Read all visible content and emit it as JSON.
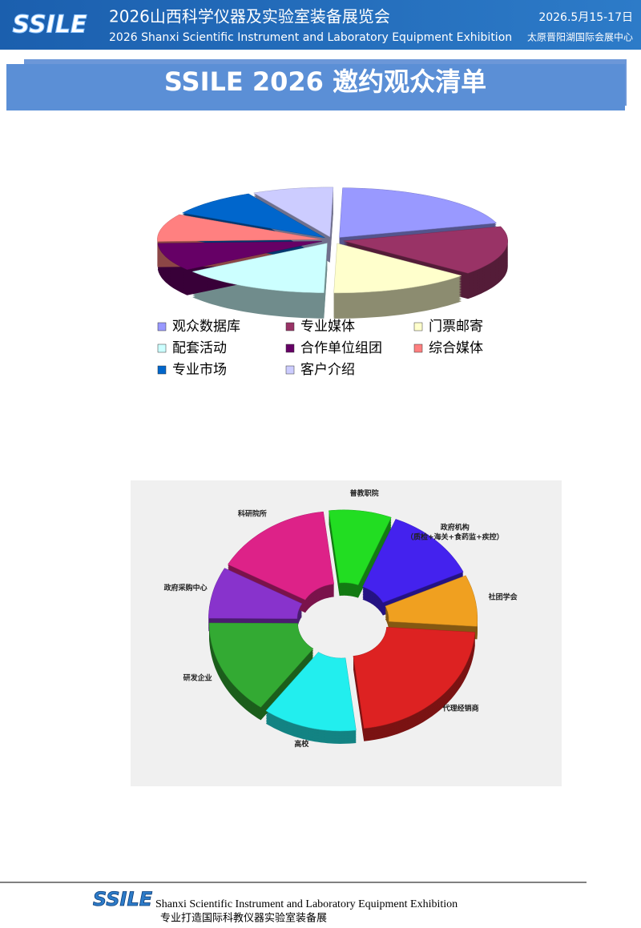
{
  "header": {
    "title": "2026山西科学仪器及实验室装备展览会",
    "subtitle": "2026 Shanxi Scientific Instrument and Laboratory Equipment Exhibition",
    "logo": "SSILE",
    "date": "2026.5月15-17日",
    "venue": "太原晋阳湖国际会展中心"
  },
  "title": "SSILE 2026 邀约观众清单",
  "chart_data": [
    {
      "type": "pie",
      "categories": [
        "观众数据库",
        "专业媒体",
        "门票邮寄",
        "配套活动",
        "合作单位组团",
        "综合媒体",
        "专业市场",
        "客户介绍"
      ],
      "values": [
        20,
        16,
        14,
        15,
        9,
        9,
        9,
        8
      ],
      "colors": [
        "#9999ff",
        "#993366",
        "#ffffcc",
        "#ccffff",
        "#660066",
        "#ff8080",
        "#0066cc",
        "#ccccff"
      ],
      "legend": "bottom"
    },
    {
      "type": "donut",
      "categories": [
        "普教职院",
        "政府机构",
        "社团学会",
        "代理经销商",
        "高校",
        "研发企业",
        "政府采购中心",
        "科研院所"
      ],
      "values": [
        8,
        12,
        8,
        22,
        12,
        15,
        8,
        15
      ],
      "colors": [
        "#22dd22",
        "#4422ee",
        "#f0a020",
        "#dd2222",
        "#22eeee",
        "#33aa33",
        "#8833cc",
        "#dd2288"
      ],
      "annotations": [
        "（质检+海关+食药监+疾控）"
      ]
    }
  ],
  "footer": {
    "logo": "SSILE",
    "english": "Shanxi Scientific Instrument and Laboratory Equipment Exhibition",
    "chinese": "专业打造国际科教仪器实验室装备展"
  }
}
